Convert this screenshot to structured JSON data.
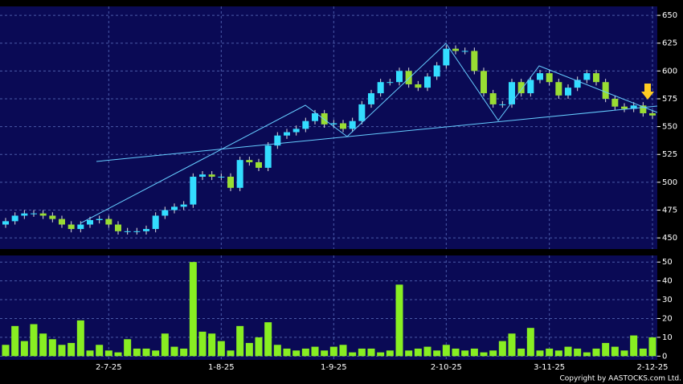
{
  "chart_data": {
    "type": "candlestick",
    "categories": [
      null,
      null,
      null,
      null,
      null,
      null,
      null,
      null,
      null,
      null,
      null,
      "2-7-25",
      null,
      null,
      null,
      null,
      null,
      null,
      null,
      null,
      null,
      null,
      null,
      "1-8-25",
      null,
      null,
      null,
      null,
      null,
      null,
      null,
      null,
      null,
      null,
      null,
      "1-9-25",
      null,
      null,
      null,
      null,
      null,
      null,
      null,
      null,
      null,
      null,
      null,
      "2-10-25",
      null,
      null,
      null,
      null,
      null,
      null,
      null,
      null,
      null,
      null,
      "3-11-25",
      null,
      null,
      null,
      null,
      null,
      null,
      null,
      null,
      null,
      null,
      "2-12-25"
    ],
    "open": [
      462,
      465,
      470,
      472,
      472,
      470,
      467,
      462,
      458,
      462,
      466,
      467,
      462,
      456,
      456,
      456,
      458,
      470,
      475,
      478,
      480,
      505,
      507,
      505,
      505,
      495,
      520,
      518,
      513,
      533,
      542,
      545,
      548,
      555,
      562,
      552,
      553,
      548,
      555,
      570,
      580,
      590,
      590,
      600,
      588,
      585,
      595,
      605,
      620,
      618,
      618,
      600,
      580,
      570,
      570,
      590,
      580,
      592,
      598,
      590,
      578,
      585,
      592,
      598,
      590,
      575,
      568,
      566,
      569,
      562
    ],
    "high": [
      468,
      473,
      475,
      475,
      475,
      473,
      470,
      465,
      465,
      469,
      470,
      470,
      465,
      459,
      459,
      461,
      473,
      478,
      481,
      483,
      508,
      510,
      510,
      508,
      508,
      523,
      523,
      521,
      536,
      545,
      548,
      551,
      558,
      565,
      565,
      556,
      556,
      558,
      573,
      583,
      593,
      593,
      603,
      603,
      591,
      598,
      608,
      623,
      623,
      621,
      621,
      603,
      583,
      573,
      593,
      593,
      595,
      601,
      601,
      593,
      588,
      595,
      601,
      601,
      593,
      578,
      571,
      572,
      572,
      565
    ],
    "low": [
      459,
      462,
      467,
      469,
      467,
      464,
      459,
      455,
      455,
      459,
      463,
      459,
      453,
      453,
      453,
      453,
      455,
      467,
      472,
      475,
      477,
      502,
      502,
      502,
      492,
      492,
      515,
      510,
      510,
      530,
      539,
      542,
      545,
      552,
      549,
      549,
      545,
      545,
      552,
      567,
      577,
      587,
      587,
      585,
      582,
      582,
      592,
      602,
      615,
      615,
      597,
      577,
      567,
      567,
      567,
      577,
      577,
      589,
      587,
      575,
      575,
      582,
      589,
      587,
      572,
      565,
      563,
      563,
      559,
      557
    ],
    "close": [
      465,
      470,
      472,
      472,
      470,
      467,
      462,
      458,
      462,
      466,
      467,
      462,
      456,
      456,
      456,
      458,
      470,
      475,
      478,
      480,
      505,
      507,
      505,
      505,
      495,
      520,
      518,
      513,
      533,
      542,
      545,
      548,
      555,
      562,
      552,
      553,
      548,
      555,
      570,
      580,
      590,
      590,
      600,
      588,
      585,
      595,
      605,
      620,
      618,
      618,
      600,
      580,
      570,
      570,
      590,
      580,
      592,
      598,
      590,
      578,
      585,
      592,
      598,
      590,
      575,
      568,
      566,
      569,
      562,
      560
    ],
    "up_color": "#33ddff",
    "down_color": "#99dd33",
    "ylim": [
      440,
      658
    ],
    "yticks": [
      450,
      475,
      500,
      525,
      550,
      575,
      600,
      625,
      650
    ],
    "volume": {
      "values": [
        6,
        16,
        8,
        17,
        12,
        9,
        6,
        7,
        19,
        3,
        6,
        3,
        2,
        9,
        4,
        4,
        3,
        12,
        5,
        4,
        50,
        13,
        12,
        8,
        3,
        16,
        7,
        10,
        18,
        6,
        4,
        3,
        4,
        5,
        3,
        5,
        6,
        2,
        4,
        4,
        2,
        3,
        38,
        3,
        4,
        5,
        3,
        6,
        4,
        3,
        4,
        2,
        3,
        8,
        12,
        4,
        15,
        3,
        4,
        3,
        5,
        4,
        2,
        4,
        7,
        5,
        3,
        11,
        4,
        10
      ],
      "color": "#88ee22",
      "ylim": [
        -2,
        53.5
      ],
      "yticks": [
        0,
        10,
        20,
        30,
        40,
        50
      ]
    },
    "grid": true,
    "copyright": "Copyright by AASTOCKS.com Ltd."
  }
}
